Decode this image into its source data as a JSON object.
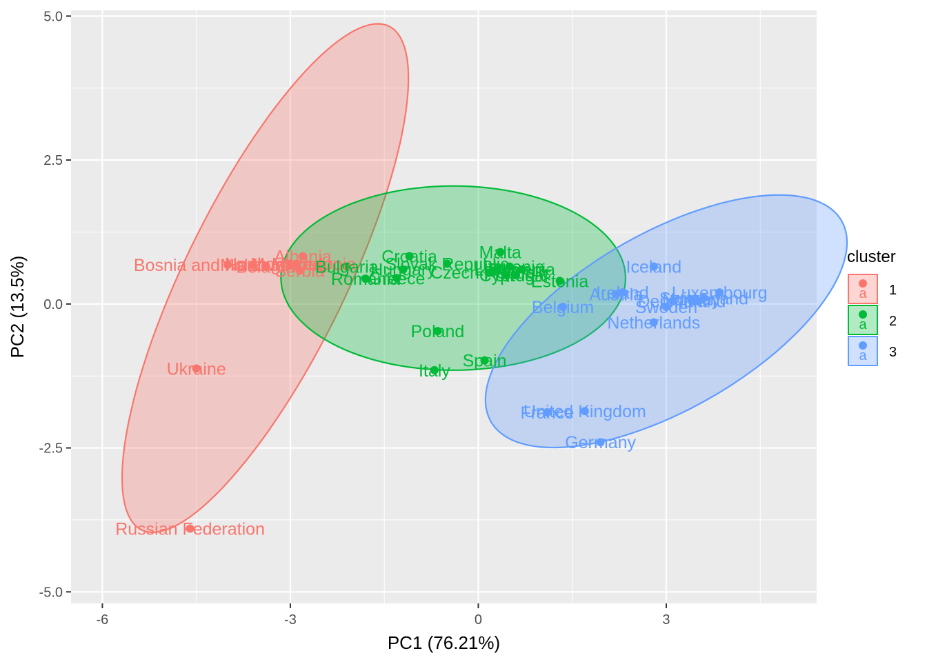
{
  "chart_data": {
    "type": "scatter",
    "title": "",
    "xlabel": "PC1 (76.21%)",
    "ylabel": "PC2 (13.5%)",
    "xlim": [
      -6.5,
      5.4
    ],
    "ylim": [
      -5.2,
      5.1
    ],
    "x_ticks": [
      -6,
      -3,
      0,
      3
    ],
    "x_tick_labels": [
      "-6",
      "-3",
      "0",
      "3"
    ],
    "y_ticks": [
      -5,
      -2.5,
      0,
      2.5,
      5
    ],
    "y_tick_labels": [
      "-5.0",
      "-2.5",
      "0.0",
      "2.5",
      "5.0"
    ],
    "grid": true,
    "legend": {
      "title": "cluster",
      "position": "right",
      "entries": [
        {
          "label": "1",
          "color": "#F8766D"
        },
        {
          "label": "2",
          "color": "#00BA38"
        },
        {
          "label": "3",
          "color": "#619CFF"
        }
      ]
    },
    "colors": {
      "1": "#F8766D",
      "2": "#00BA38",
      "3": "#619CFF",
      "panel": "#EBEBEB",
      "grid": "#FFFFFF"
    },
    "ellipses": [
      {
        "cluster": "1",
        "cx": -3.4,
        "cy": 0.45,
        "rx": 4.8,
        "ry": 1.3,
        "angle_deg": 66
      },
      {
        "cluster": "2",
        "cx": -0.4,
        "cy": 0.45,
        "rx": 2.75,
        "ry": 1.6,
        "angle_deg": 0
      },
      {
        "cluster": "3",
        "cx": 3.0,
        "cy": -0.3,
        "rx": 3.3,
        "ry": 1.5,
        "angle_deg": 33
      }
    ],
    "series": [
      {
        "name": "1",
        "points": [
          {
            "label": "Albania",
            "x": -2.8,
            "y": 0.83
          },
          {
            "label": "Serbia",
            "x": -2.85,
            "y": 0.58
          },
          {
            "label": "Montenegro",
            "x": -2.9,
            "y": 0.7
          },
          {
            "label": "Bosnia and Herzegovina",
            "x": -4.0,
            "y": 0.68
          },
          {
            "label": "Belarus",
            "x": -3.4,
            "y": 0.65
          },
          {
            "label": "North Macedonia",
            "x": -3.0,
            "y": 0.7
          },
          {
            "label": "Moldova",
            "x": -3.6,
            "y": 0.68
          },
          {
            "label": "Ukraine",
            "x": -4.5,
            "y": -1.12
          },
          {
            "label": "Russian Federation",
            "x": -4.6,
            "y": -3.9
          }
        ]
      },
      {
        "name": "2",
        "points": [
          {
            "label": "Croatia",
            "x": -1.1,
            "y": 0.83
          },
          {
            "label": "Malta",
            "x": 0.35,
            "y": 0.9
          },
          {
            "label": "Slovak Republic",
            "x": -0.5,
            "y": 0.7
          },
          {
            "label": "Hungary",
            "x": -1.2,
            "y": 0.6
          },
          {
            "label": "Bulgaria",
            "x": -2.1,
            "y": 0.65
          },
          {
            "label": "Romania",
            "x": -1.8,
            "y": 0.44
          },
          {
            "label": "Greece",
            "x": -1.3,
            "y": 0.45
          },
          {
            "label": "Czech Republic",
            "x": 0.2,
            "y": 0.55
          },
          {
            "label": "Lithuania",
            "x": 0.5,
            "y": 0.65
          },
          {
            "label": "Latvia",
            "x": 0.3,
            "y": 0.6
          },
          {
            "label": "Slovenia",
            "x": 0.7,
            "y": 0.6
          },
          {
            "label": "Portugal",
            "x": 0.6,
            "y": 0.5
          },
          {
            "label": "Cyprus",
            "x": 0.45,
            "y": 0.5
          },
          {
            "label": "Estonia",
            "x": 1.3,
            "y": 0.4
          },
          {
            "label": "Poland",
            "x": -0.65,
            "y": -0.47
          },
          {
            "label": "Spain",
            "x": 0.1,
            "y": -0.98
          },
          {
            "label": "Italy",
            "x": -0.7,
            "y": -1.15
          }
        ]
      },
      {
        "name": "3",
        "points": [
          {
            "label": "Iceland",
            "x": 2.8,
            "y": 0.65
          },
          {
            "label": "Luxembourg",
            "x": 3.85,
            "y": 0.2
          },
          {
            "label": "Ireland",
            "x": 2.3,
            "y": 0.2
          },
          {
            "label": "Austria",
            "x": 2.2,
            "y": 0.17
          },
          {
            "label": "Denmark",
            "x": 3.1,
            "y": 0.05
          },
          {
            "label": "Finland",
            "x": 3.5,
            "y": 0.05
          },
          {
            "label": "Norway",
            "x": 3.4,
            "y": 0.08
          },
          {
            "label": "Switzerland",
            "x": 3.6,
            "y": 0.1
          },
          {
            "label": "Sweden",
            "x": 3.0,
            "y": -0.05
          },
          {
            "label": "Belgium",
            "x": 1.35,
            "y": -0.05
          },
          {
            "label": "Netherlands",
            "x": 2.8,
            "y": -0.32
          },
          {
            "label": "United Kingdom",
            "x": 1.7,
            "y": -1.86
          },
          {
            "label": "France",
            "x": 1.1,
            "y": -1.88
          },
          {
            "label": "Germany",
            "x": 1.95,
            "y": -2.4
          }
        ]
      }
    ]
  }
}
